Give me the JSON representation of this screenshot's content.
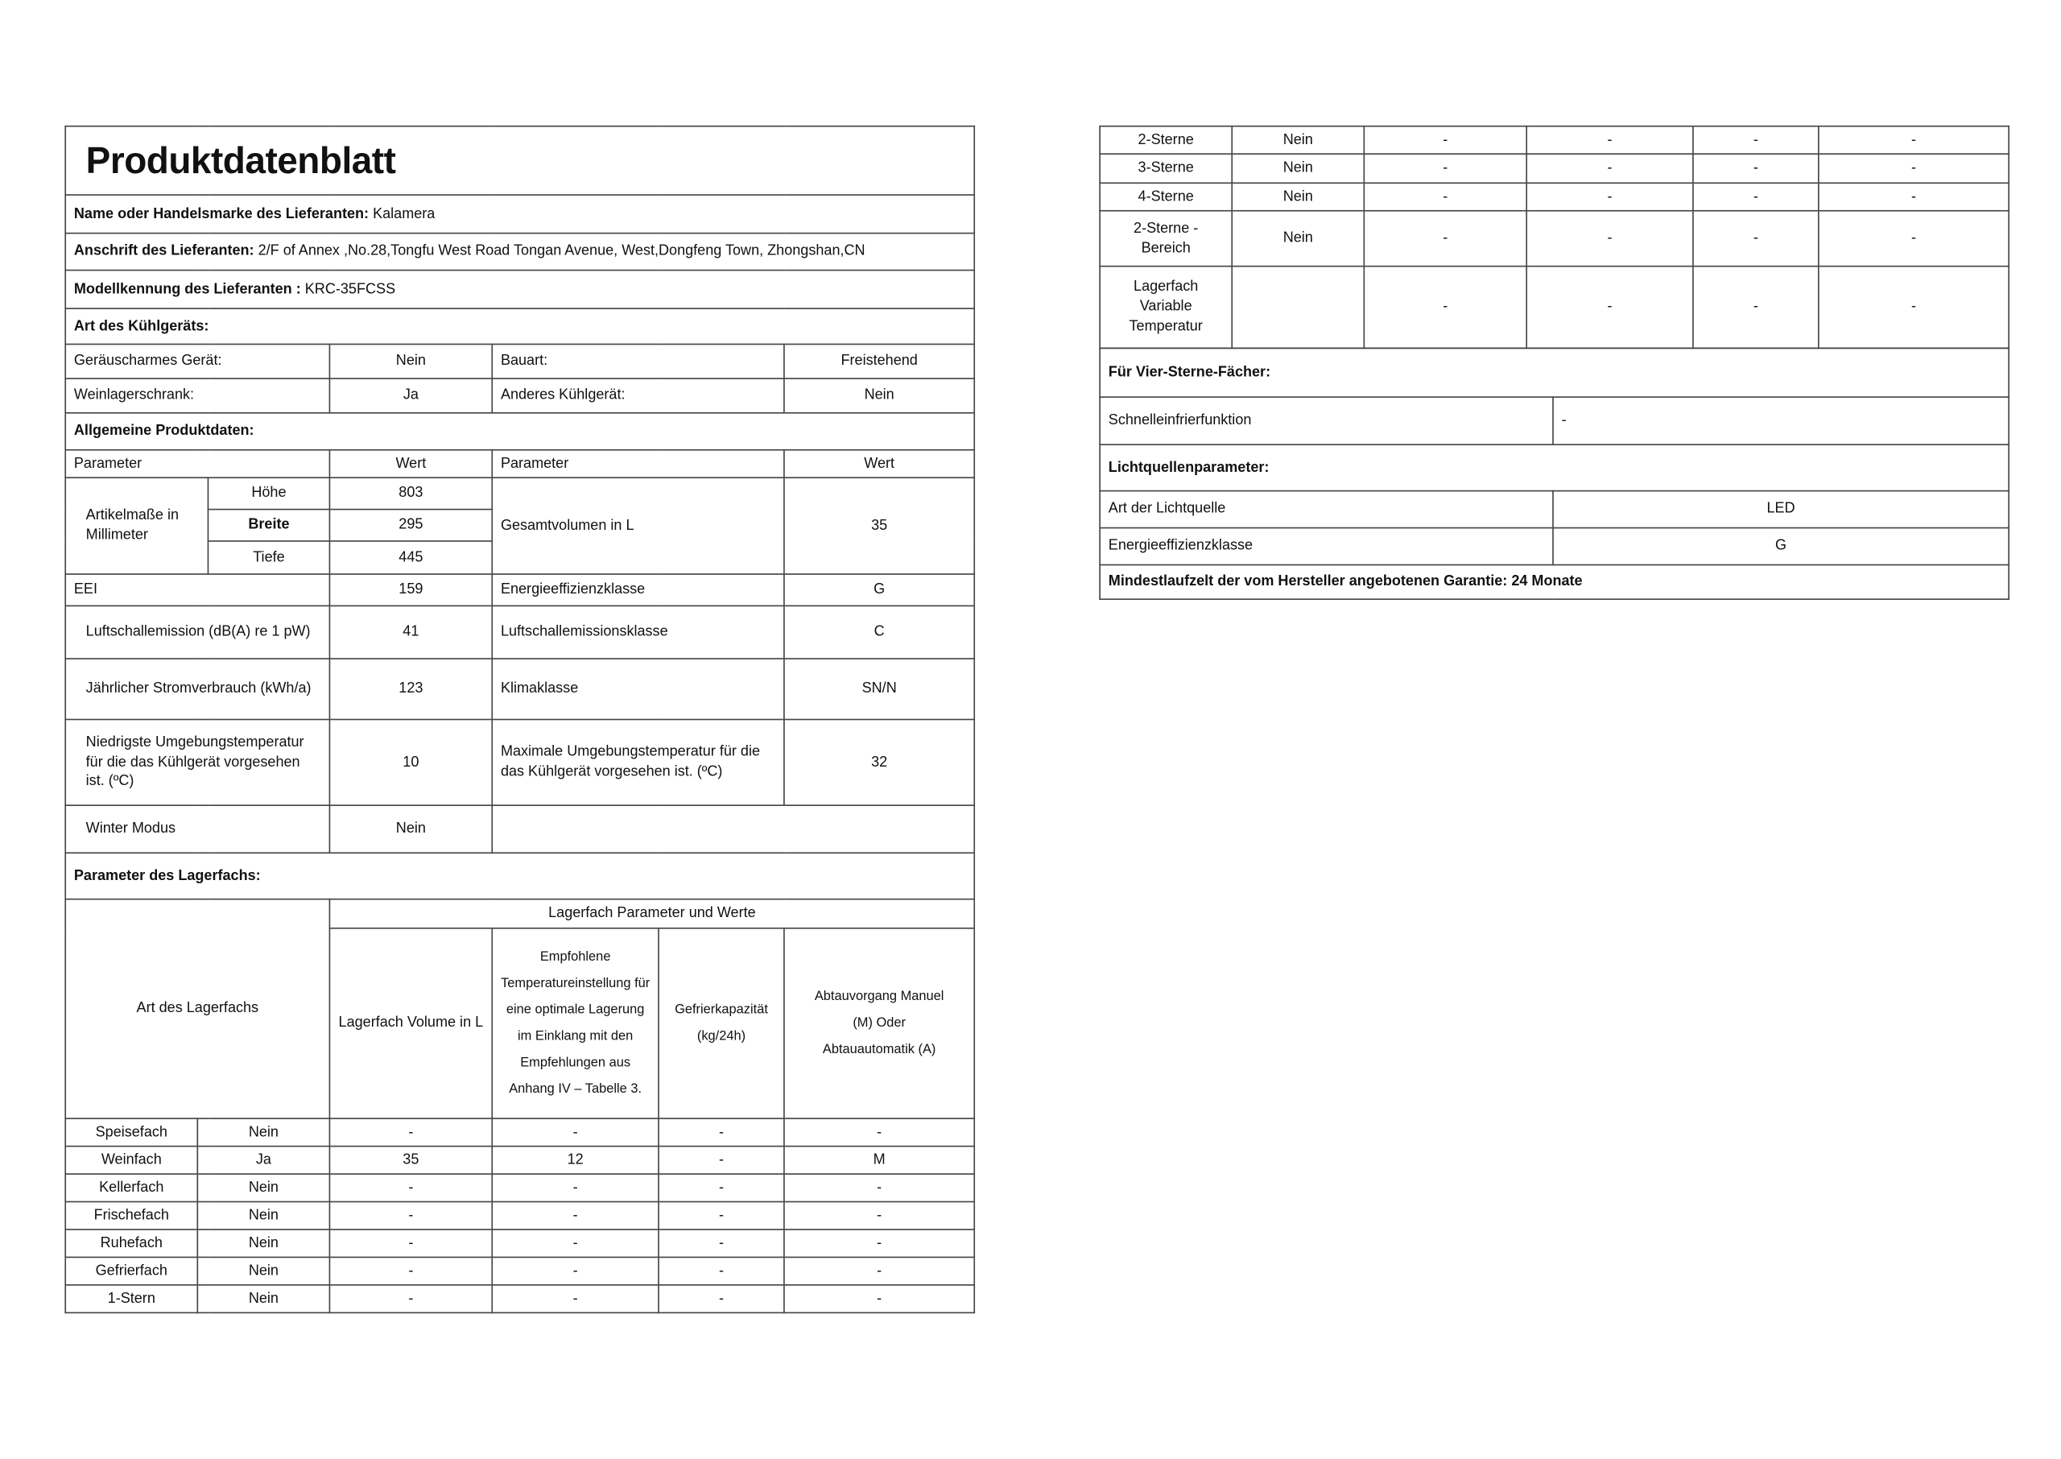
{
  "title": "Produktdatenblatt",
  "supplier": {
    "name_label": "Name oder Handelsmarke des Lieferanten:",
    "name": "Kalamera",
    "address_label": "Anschrift des Lieferanten:",
    "address": "2/F of Annex ,No.28,Tongfu West Road Tongan Avenue, West,Dongfeng Town, Zhongshan,CN",
    "model_label": "Modellkennung des Lieferanten :",
    "model": "KRC-35FCSS"
  },
  "type": {
    "heading": "Art des Kühlgeräts:",
    "low_noise_label": "Geräuscharmes Gerät:",
    "low_noise": "Nein",
    "design_label": "Bauart:",
    "design": "Freistehend",
    "wine_label": "Weinlagerschrank:",
    "wine": "Ja",
    "other_label": "Anderes Kühlgerät:",
    "other": "Nein"
  },
  "general": {
    "heading": "Allgemeine Produktdaten:",
    "param": "Parameter",
    "value": "Wert",
    "dims_label": "Artikelmaße in Millimeter",
    "height_label": "Höhe",
    "height": "803",
    "width_label": "Breite",
    "width": "295",
    "depth_label": "Tiefe",
    "depth": "445",
    "volume_label": "Gesamtvolumen in L",
    "volume": "35",
    "eei_label": "EEI",
    "eei": "159",
    "eclass_label": "Energieeffizienzklasse",
    "eclass": "G",
    "noise_label": "Luftschallemission (dB(A) re 1 pW)",
    "noise": "41",
    "noise_class_label": "Luftschallemissionsklasse",
    "noise_class": "C",
    "energy_label": "Jährlicher Stromverbrauch (kWh/a)",
    "energy": "123",
    "climate_label": "Klimaklasse",
    "climate": "SN/N",
    "min_temp_label": "Niedrigste Umgebungstemperatur für die das Kühlgerät vorgesehen ist. (ºC)",
    "min_temp": "10",
    "max_temp_label": "Maximale Umgebungstemperatur für die das Kühlgerät vorgesehen ist. (ºC)",
    "max_temp": "32",
    "winter_label": "Winter Modus",
    "winter": "Nein"
  },
  "compartments": {
    "heading": "Parameter des Lagerfachs:",
    "type_header": "Art des Lagerfachs",
    "group_header": "Lagerfach Parameter und Werte",
    "col_volume": "Lagerfach Volume in L",
    "col_temp": "Empfohlene Temperatureinstellung für eine optimale Lagerung im Einklang mit den Empfehlungen aus Anhang IV – Tabelle 3.",
    "col_freeze": "Gefrierkapazität (kg/24h)",
    "col_defrost": "Abtauvorgang Manuel (M) Oder Abtauautomatik (A)",
    "rows": [
      {
        "name": "Speisefach",
        "present": "Nein",
        "volume": "-",
        "temp": "-",
        "freeze": "-",
        "defrost": "-"
      },
      {
        "name": "Weinfach",
        "present": "Ja",
        "volume": "35",
        "temp": "12",
        "freeze": "-",
        "defrost": "M"
      },
      {
        "name": "Kellerfach",
        "present": "Nein",
        "volume": "-",
        "temp": "-",
        "freeze": "-",
        "defrost": "-"
      },
      {
        "name": "Frischefach",
        "present": "Nein",
        "volume": "-",
        "temp": "-",
        "freeze": "-",
        "defrost": "-"
      },
      {
        "name": "Ruhefach",
        "present": "Nein",
        "volume": "-",
        "temp": "-",
        "freeze": "-",
        "defrost": "-"
      },
      {
        "name": "Gefrierfach",
        "present": "Nein",
        "volume": "-",
        "temp": "-",
        "freeze": "-",
        "defrost": "-"
      },
      {
        "name": "1-Stern",
        "present": "Nein",
        "volume": "-",
        "temp": "-",
        "freeze": "-",
        "defrost": "-"
      },
      {
        "name": "2-Sterne",
        "present": "Nein",
        "volume": "-",
        "temp": "-",
        "freeze": "-",
        "defrost": "-"
      },
      {
        "name": "3-Sterne",
        "present": "Nein",
        "volume": "-",
        "temp": "-",
        "freeze": "-",
        "defrost": "-"
      },
      {
        "name": "4-Sterne",
        "present": "Nein",
        "volume": "-",
        "temp": "-",
        "freeze": "-",
        "defrost": "-"
      },
      {
        "name": "2-Sterne - Bereich",
        "present": "Nein",
        "volume": "-",
        "temp": "-",
        "freeze": "-",
        "defrost": "-"
      },
      {
        "name": "Lagerfach Variable Temperatur",
        "present": "",
        "volume": "-",
        "temp": "-",
        "freeze": "-",
        "defrost": "-"
      }
    ]
  },
  "four_star": {
    "heading": "Für Vier-Sterne-Fächer:",
    "fast_freeze_label": "Schnelleinfrierfunktion",
    "fast_freeze": "-"
  },
  "light": {
    "heading": "Lichtquellenparameter:",
    "type_label": "Art der Lichtquelle",
    "type": "LED",
    "class_label": "Energieeffizienzklasse",
    "class": "G"
  },
  "warranty": "Mindestlaufzelt der vom Hersteller angebotenen Garantie: 24 Monate"
}
